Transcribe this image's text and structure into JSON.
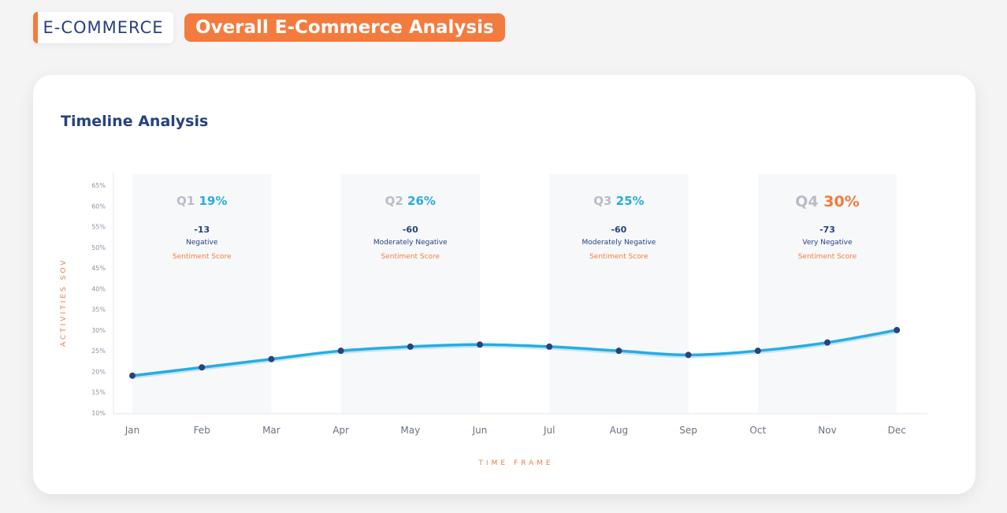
{
  "header": {
    "section_tag": "E-COMMERCE",
    "page_title": "Overall E-Commerce Analysis"
  },
  "card": {
    "title": "Timeline Analysis"
  },
  "colors": {
    "accent": "#f47b3e",
    "primary": "#27427e",
    "line": "#29abe2",
    "highlight_band": "#f7f8fa"
  },
  "chart_data": {
    "type": "line",
    "title": "Timeline Analysis",
    "xlabel": "TIME FRAME",
    "ylabel": "ACTIVITIES SOV",
    "categories": [
      "Jan",
      "Feb",
      "Mar",
      "Apr",
      "May",
      "Jun",
      "Jul",
      "Aug",
      "Sep",
      "Oct",
      "Nov",
      "Dec"
    ],
    "series": [
      {
        "values": [
          19,
          21,
          23,
          25,
          26,
          26.5,
          26,
          25,
          24,
          25,
          27,
          30
        ]
      }
    ],
    "ylim": [
      10,
      65
    ],
    "yticks": [
      "10%",
      "15%",
      "20%",
      "25%",
      "30%",
      "35%",
      "40%",
      "45%",
      "50%",
      "55%",
      "60%",
      "65%"
    ],
    "quarters": [
      {
        "label": "Q1",
        "value": "19%",
        "score": "-13",
        "sentiment": "Negative",
        "caption": "Sentiment Score",
        "color": "#29abe2",
        "from": "Jan",
        "to": "Mar"
      },
      {
        "label": "Q2",
        "value": "26%",
        "score": "-60",
        "sentiment": "Moderately Negative",
        "caption": "Sentiment Score",
        "color": "#29abe2",
        "from": "Apr",
        "to": "Jun"
      },
      {
        "label": "Q3",
        "value": "25%",
        "score": "-60",
        "sentiment": "Moderately Negative",
        "caption": "Sentiment Score",
        "color": "#29abe2",
        "from": "Jul",
        "to": "Sep"
      },
      {
        "label": "Q4",
        "value": "30%",
        "score": "-73",
        "sentiment": "Very Negative",
        "caption": "Sentiment Score",
        "color": "#f47b3e",
        "from": "Oct",
        "to": "Dec"
      }
    ]
  }
}
